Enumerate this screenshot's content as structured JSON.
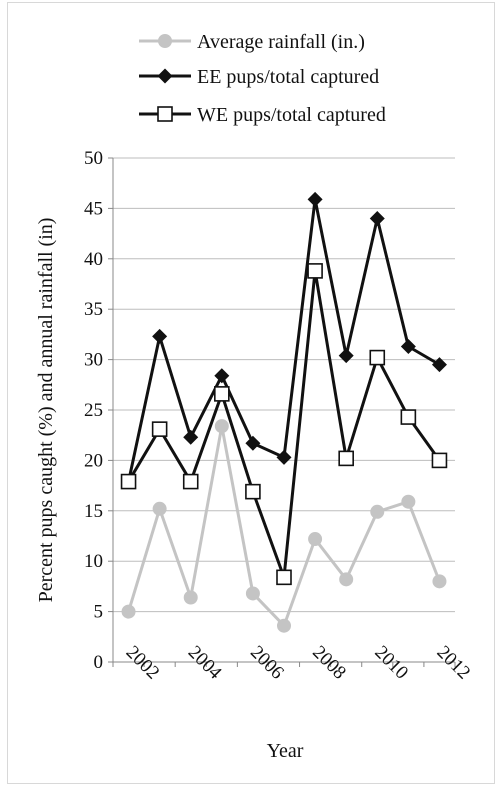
{
  "chart_data": {
    "type": "line",
    "title": "",
    "xlabel": "Year",
    "ylabel": "Percent  pups caught (%) and annual rainfall (in)",
    "x": [
      2001.5,
      2002.5,
      2003.5,
      2004.5,
      2005.5,
      2006.5,
      2007.5,
      2008.5,
      2009.5,
      2010.5,
      2011.5
    ],
    "x_ticks": [
      "2002",
      "2004",
      "2006",
      "2008",
      "2010",
      "2012"
    ],
    "y_ticks": [
      "0",
      "5",
      "10",
      "15",
      "20",
      "25",
      "30",
      "35",
      "40",
      "45",
      "50"
    ],
    "ylim": [
      0,
      50
    ],
    "grid": "horizontal",
    "legend_position": "top",
    "series": [
      {
        "name": "Average rainfall (in.)",
        "color": "#c4c4c4",
        "marker": "circle",
        "values": [
          5.0,
          15.2,
          6.4,
          23.4,
          6.8,
          3.6,
          12.2,
          8.2,
          14.9,
          15.9,
          8.0
        ]
      },
      {
        "name": "EE pups/total captured",
        "color": "#111111",
        "marker": "diamond",
        "values": [
          17.9,
          32.3,
          22.3,
          28.4,
          21.7,
          20.3,
          45.9,
          30.4,
          44.0,
          31.3,
          29.5
        ]
      },
      {
        "name": "WE pups/total captured",
        "color": "#111111",
        "marker": "open-square",
        "values": [
          17.9,
          23.1,
          17.9,
          26.6,
          16.9,
          8.4,
          38.8,
          20.2,
          30.2,
          24.3,
          20.0
        ]
      }
    ]
  }
}
